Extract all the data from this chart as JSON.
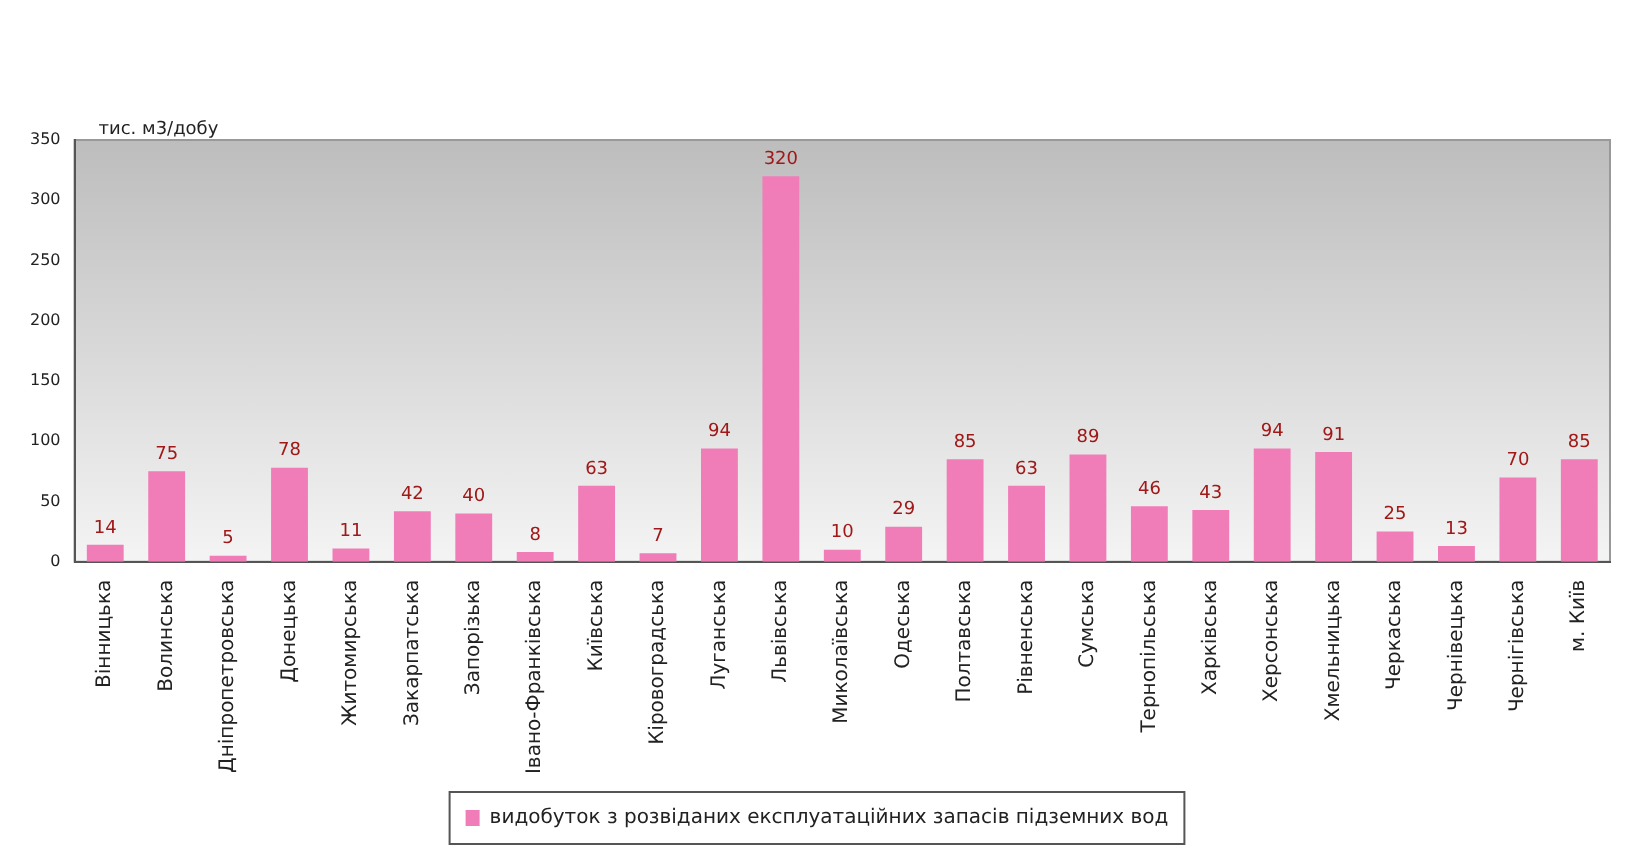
{
  "chart_data": {
    "type": "bar",
    "ylabel": "тис. м3/добу",
    "categories": [
      "Вінницька",
      "Волинська",
      "Дніпропетровська",
      "Донецька",
      "Житомирська",
      "Закарпатська",
      "Запорізька",
      "Івано-Франківська",
      "Київська",
      "Кіровоградська",
      "Луганська",
      "Львівська",
      "Миколаївська",
      "Одеська",
      "Полтавська",
      "Рівненська",
      "Сумська",
      "Тернопільська",
      "Харківська",
      "Херсонська",
      "Хмельницька",
      "Черкаська",
      "Чернівецька",
      "Чернігівська",
      "м. Київ"
    ],
    "series": [
      {
        "name": "видобуток з розвіданих експлуатаційних запасів підземних вод",
        "color": "#f07cb8",
        "values": [
          14,
          75,
          5,
          78,
          11,
          42,
          40,
          8,
          63,
          7,
          94,
          320,
          10,
          29,
          85,
          63,
          89,
          46,
          43,
          94,
          91,
          25,
          13,
          70,
          85
        ]
      }
    ],
    "ylim": [
      0,
      350
    ],
    "yticks": [
      0,
      50,
      100,
      150,
      200,
      250,
      300,
      350
    ],
    "grid": false,
    "legend": "bottom",
    "data_labels": true
  }
}
